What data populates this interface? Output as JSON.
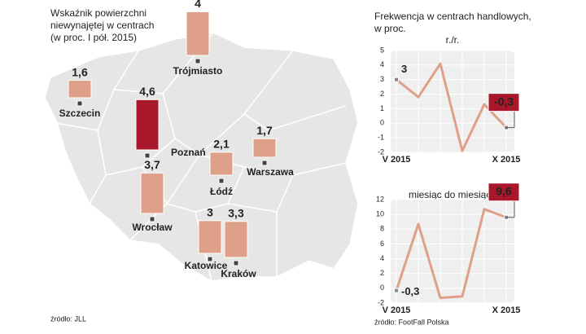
{
  "chart_data": [
    {
      "type": "bar",
      "title": [
        "Wskaźnik powierzchni",
        "niewynajętej w centrach",
        "(w proc. I pół. 2015)"
      ],
      "categories": [
        "Trójmiasto",
        "Szczecin",
        "Poznań",
        "Łódź",
        "Warszawa",
        "Wrocław",
        "Katowice",
        "Kraków"
      ],
      "values": [
        4,
        1.6,
        4.6,
        2.1,
        1.7,
        3.7,
        3,
        3.3
      ],
      "value_labels": [
        "4",
        "1,6",
        "4,6",
        "2,1",
        "1,7",
        "3,7",
        "3",
        "3,3"
      ],
      "colors": [
        "#dfa08a",
        "#dfa08a",
        "#a8182a",
        "#dfa08a",
        "#dfa08a",
        "#dfa08a",
        "#dfa08a",
        "#dfa08a"
      ],
      "source": "źródło: JLL"
    },
    {
      "type": "line",
      "title": [
        "Frekwencja w centrach handlowych,",
        "w proc."
      ],
      "subtitle": "r./r.",
      "categories": [
        "V 2015",
        null,
        null,
        null,
        null,
        "X 2015"
      ],
      "values": [
        3,
        1.8,
        4.1,
        -1.9,
        1.3,
        -0.3
      ],
      "value_labels": [
        "3",
        null,
        null,
        null,
        null,
        "-0,3"
      ],
      "color": "#dfa08a",
      "ylim": [
        -2,
        5
      ],
      "yticks": [
        -2,
        -1,
        0,
        1,
        2,
        3,
        4,
        5
      ]
    },
    {
      "type": "line",
      "subtitle": "miesiąc do miesiąca",
      "categories": [
        "V 2015",
        null,
        null,
        null,
        null,
        "X 2015"
      ],
      "values": [
        -0.3,
        8.7,
        -1.3,
        -1.1,
        10.7,
        9.6
      ],
      "value_labels": [
        "-0,3",
        null,
        null,
        null,
        null,
        "9,6"
      ],
      "color": "#dfa08a",
      "ylim": [
        -2,
        12
      ],
      "yticks": [
        -2,
        0,
        2,
        4,
        6,
        8,
        10,
        12
      ],
      "source": "źródło: FootFall Polska"
    }
  ]
}
